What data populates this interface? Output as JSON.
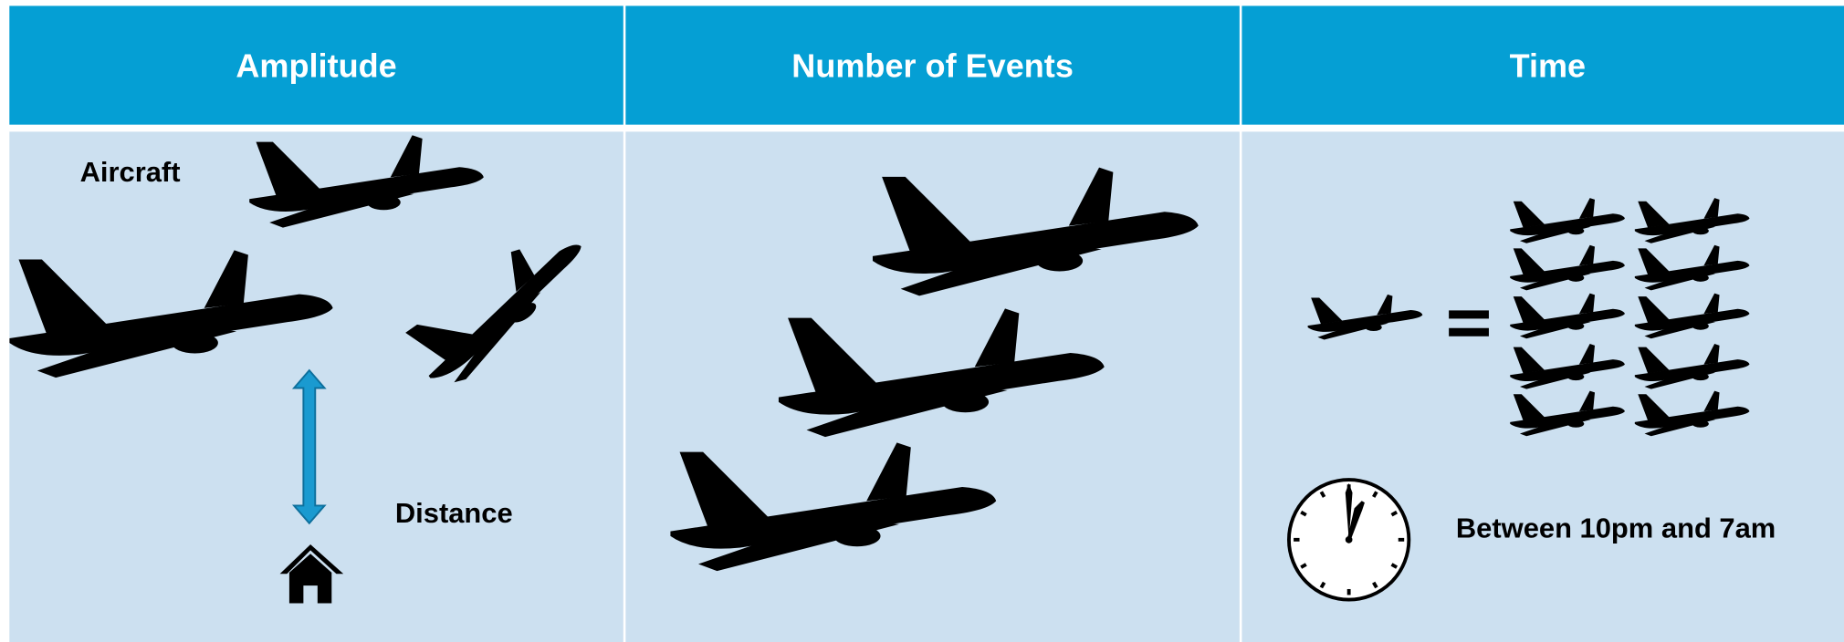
{
  "header": {
    "columns": [
      "Amplitude",
      "Number of Events",
      "Time"
    ]
  },
  "panels": {
    "amplitude": {
      "aircraft_label": "Aircraft",
      "distance_label": "Distance"
    },
    "time": {
      "period_label": "Between 10pm and 7am"
    }
  }
}
